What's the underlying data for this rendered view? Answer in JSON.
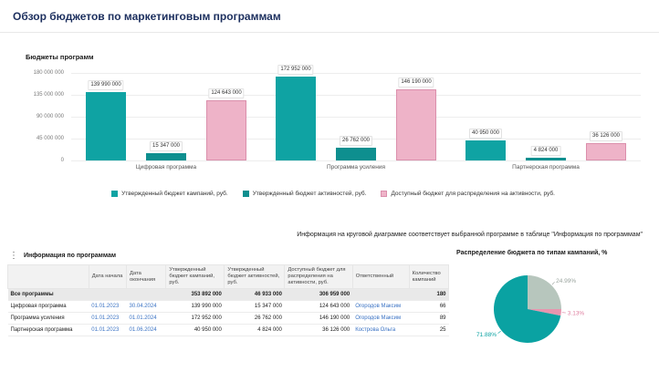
{
  "page": {
    "title": "Обзор бюджетов по маркетинговым программам"
  },
  "note": "Информация на круговой диаграмме соответствует выбранной программе в таблице \"Информация по программам\"",
  "colors": {
    "title_navy": "#1c2f5e",
    "teal": "#0fa3a3",
    "teal_dark": "#0e8f8f",
    "pink_fill": "#eeb3c8",
    "pink_stroke": "#db8fac",
    "link_blue": "#3b73c4",
    "pie_gray": "#b7c6bd",
    "pie_pink": "#e795ae",
    "pie_teal": "#0aa2a2"
  },
  "chart_data": [
    {
      "type": "bar",
      "title": "Бюджеты программ",
      "categories": [
        "Цифровая программа",
        "Программа усиления",
        "Партнерская программа"
      ],
      "series": [
        {
          "name": "Утвержденный бюджет кампаний, руб.",
          "fill": "#0fa3a3",
          "values": [
            139990000,
            172952000,
            40950000
          ],
          "labels": [
            "139 990 000",
            "172 952 000",
            "40 950 000"
          ]
        },
        {
          "name": "Утвержденный бюджет активностей, руб.",
          "fill": "#0e8f8f",
          "values": [
            15347000,
            26762000,
            4824000
          ],
          "labels": [
            "15 347 000",
            "26 762 000",
            "4 824 000"
          ]
        },
        {
          "name": "Доступный бюджет для распределения на активности, руб.",
          "fill": "#eeb3c8",
          "stroke": "#db8fac",
          "values": [
            124643000,
            146190000,
            36126000
          ],
          "labels": [
            "124 643 000",
            "146 190 000",
            "36 126 000"
          ]
        }
      ],
      "ylim": [
        0,
        180000000
      ],
      "yticks": [
        "180 000 000",
        "135 000 000",
        "90 000 000",
        "45 000 000",
        "0"
      ],
      "grid": true,
      "legend_position": "bottom"
    },
    {
      "type": "pie",
      "title": "Распределение бюджета по типам кампаний, %",
      "slices": [
        {
          "label": "24.99%",
          "value": 24.99,
          "color": "#b7c6bd",
          "label_color": "#9aa49e"
        },
        {
          "label": "3.13%",
          "value": 3.13,
          "color": "#e795ae",
          "label_color": "#df7fa0"
        },
        {
          "label": "71.88%",
          "value": 71.88,
          "color": "#0aa2a2",
          "label_color": "#0aa2a2"
        }
      ]
    }
  ],
  "table": {
    "menu_icon": "⋮",
    "title": "Информация по программам",
    "columns": [
      "",
      "Дата начала",
      "Дата окончания",
      "Утвержденный бюджет кампаний, руб.",
      "Утвержденный бюджет активностей, руб.",
      "Доступный бюджет для распределения на активности, руб.",
      "Ответственный",
      "Количество кампаний"
    ],
    "rows": [
      {
        "name": "Все программы",
        "start": "",
        "end": "",
        "campaign": "353 892 000",
        "activities": "46 933 000",
        "available": "306 959 000",
        "owner": "",
        "count": "180",
        "summary": true
      },
      {
        "name": "Цифровая программа",
        "start": "01.01.2023",
        "end": "30.04.2024",
        "campaign": "139 990 000",
        "activities": "15 347 000",
        "available": "124 643 000",
        "owner": "Огородов Максим",
        "count": "66"
      },
      {
        "name": "Программа усиления",
        "start": "01.01.2023",
        "end": "01.01.2024",
        "campaign": "172 952 000",
        "activities": "26 762 000",
        "available": "146 190 000",
        "owner": "Огородов Максим",
        "count": "89"
      },
      {
        "name": "Партнерская программа",
        "start": "01.01.2023",
        "end": "01.06.2024",
        "campaign": "40 950 000",
        "activities": "4 824 000",
        "available": "36 126 000",
        "owner": "Кострова Ольга",
        "count": "25"
      }
    ]
  }
}
